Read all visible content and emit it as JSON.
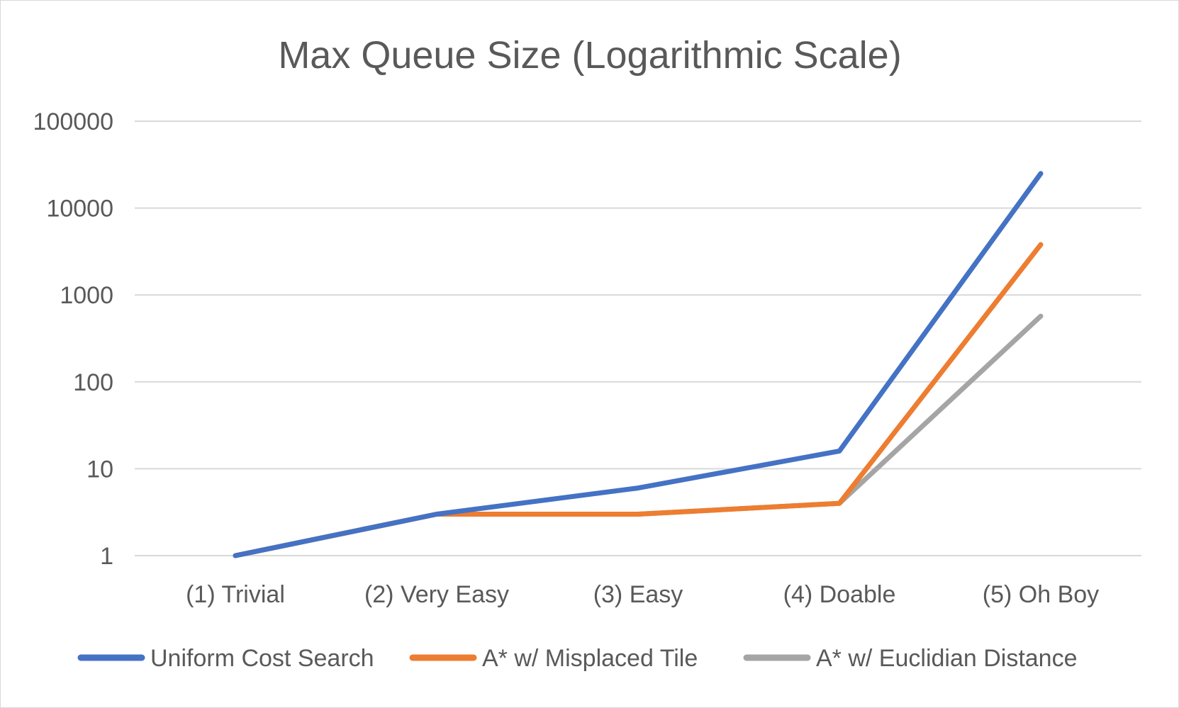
{
  "chart_data": {
    "type": "line",
    "title": "Max Queue Size (Logarithmic Scale)",
    "xlabel": "",
    "ylabel": "",
    "y_scale": "log",
    "ylim": [
      1,
      100000
    ],
    "y_ticks": [
      "1",
      "10",
      "100",
      "1000",
      "10000",
      "100000"
    ],
    "categories": [
      "(1) Trivial",
      "(2) Very Easy",
      "(3) Easy",
      "(4) Doable",
      "(5) Oh Boy"
    ],
    "series": [
      {
        "name": "Uniform Cost Search",
        "color": "#4472c4",
        "values": [
          1,
          3,
          6,
          16,
          25000
        ]
      },
      {
        "name": "A* w/ Misplaced Tile",
        "color": "#ed7d31",
        "values": [
          1,
          3,
          3,
          4,
          3800
        ]
      },
      {
        "name": "A* w/ Euclidian Distance",
        "color": "#a5a5a5",
        "values": [
          1,
          3,
          3,
          4,
          570
        ]
      }
    ],
    "grid": true,
    "legend_position": "bottom"
  }
}
